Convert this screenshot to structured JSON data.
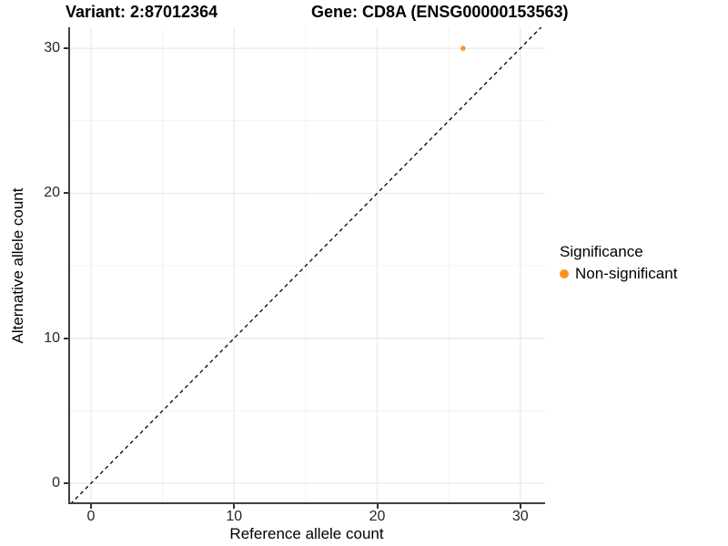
{
  "chart_data": {
    "type": "scatter",
    "title_left": "Variant: 2:87012364",
    "title_right": "Gene: CD8A (ENSG00000153563)",
    "xlabel": "Reference allele count",
    "ylabel": "Alternative allele count",
    "xlim": [
      -1.59,
      31.73
    ],
    "ylim": [
      -1.44,
      31.45
    ],
    "xticks": [
      0,
      10,
      20,
      30
    ],
    "yticks": [
      0,
      10,
      20,
      30
    ],
    "xminor": [
      5,
      15,
      25
    ],
    "yminor": [
      5,
      15,
      25
    ],
    "grid": true,
    "series": [
      {
        "name": "Non-significant",
        "color": "#F79420",
        "points": [
          {
            "x": 26,
            "y": 30
          }
        ]
      }
    ],
    "reference_line": {
      "kind": "identity",
      "slope": 1,
      "intercept": 0,
      "style": "dashed",
      "color": "#000000"
    },
    "legend": {
      "title": "Significance",
      "position": "right",
      "items": [
        {
          "label": "Non-significant",
          "color": "#F79420"
        }
      ]
    },
    "colors": {
      "grid_major": "#E8E8E8",
      "grid_minor": "#F2F2F2",
      "axis_line": "#404040",
      "tick_mark": "#333333",
      "tick_text": "#262626"
    }
  }
}
